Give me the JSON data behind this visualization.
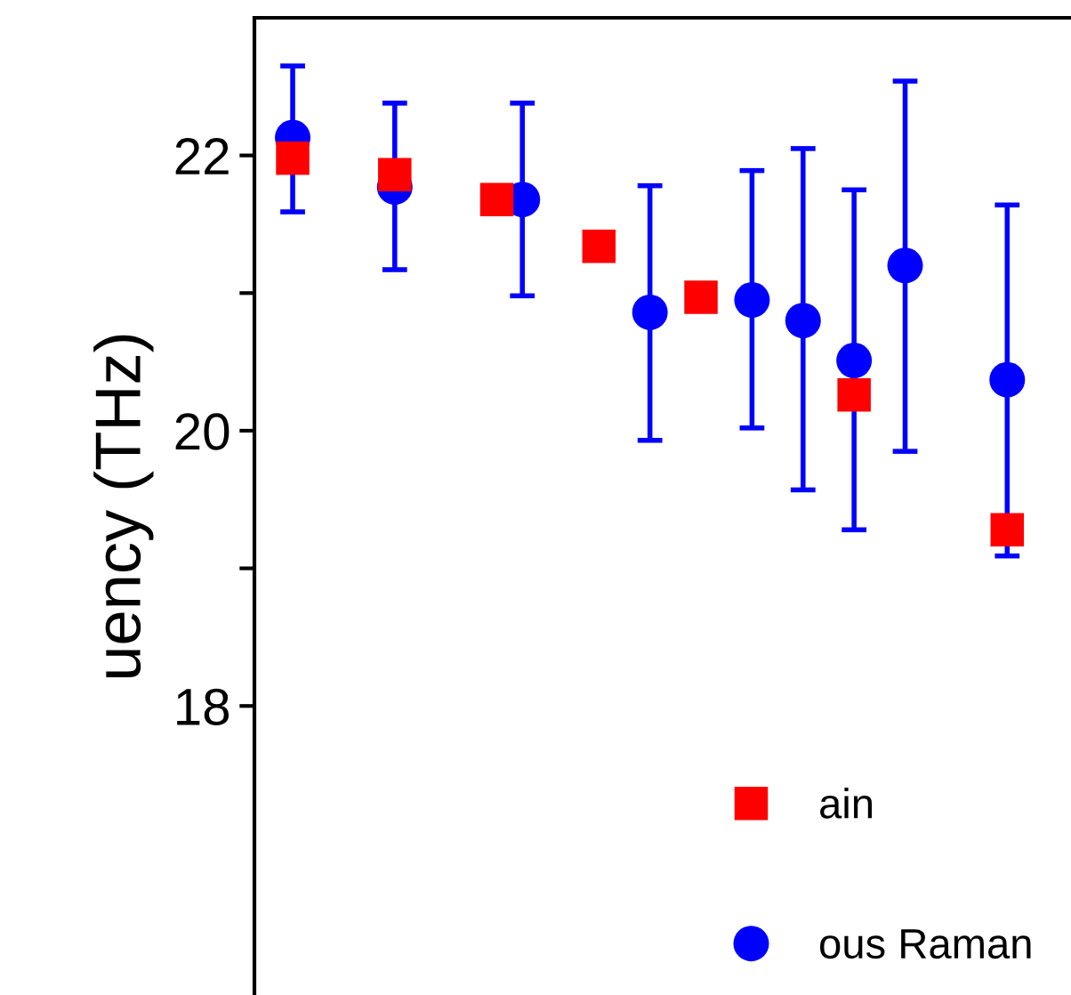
{
  "chart_data": {
    "type": "scatter",
    "ylabel": "uency (THz)",
    "categories": [
      null,
      null,
      null,
      null,
      null,
      null,
      null,
      null,
      null,
      null,
      null,
      null,
      null,
      null,
      null,
      null,
      null,
      null,
      null,
      null,
      null,
      null,
      null,
      null,
      null,
      null,
      null,
      null,
      null,
      null,
      null,
      null
    ],
    "ylim": [
      15.9,
      23
    ],
    "yticks": [
      {
        "value": 18,
        "label": "18"
      },
      {
        "value": 19,
        "label": null
      },
      {
        "value": 20,
        "label": "20"
      },
      {
        "value": 21,
        "label": null
      },
      {
        "value": 22,
        "label": "22"
      }
    ],
    "tick_labels": "y",
    "legend": "bottom right",
    "grid": false,
    "series": [
      {
        "name": "ain",
        "color": "#ff0000",
        "marker": "square",
        "values": [
          null,
          21.98,
          null,
          null,
          null,
          21.86,
          null,
          null,
          null,
          21.68,
          null,
          null,
          null,
          21.34,
          null,
          null,
          null,
          20.97,
          null,
          null,
          null,
          null,
          null,
          20.26,
          null,
          null,
          null,
          null,
          null,
          19.28,
          null,
          null
        ]
      },
      {
        "name": "ous Raman",
        "color": "#0000ff",
        "marker": "circle",
        "values": [
          null,
          22.13,
          null,
          null,
          null,
          21.77,
          null,
          null,
          null,
          null,
          21.68,
          null,
          null,
          null,
          null,
          20.86,
          null,
          null,
          null,
          20.95,
          null,
          20.8,
          null,
          20.51,
          null,
          21.2,
          null,
          null,
          null,
          20.37,
          null,
          null
        ],
        "errors": [
          null,
          [
            21.59,
            22.65
          ],
          null,
          null,
          null,
          [
            21.17,
            22.38
          ],
          null,
          null,
          null,
          null,
          [
            20.98,
            22.38
          ],
          null,
          null,
          null,
          null,
          [
            19.93,
            21.78
          ],
          null,
          null,
          null,
          [
            20.02,
            21.89
          ],
          null,
          [
            19.57,
            22.05
          ],
          null,
          [
            19.28,
            21.75
          ],
          null,
          [
            19.85,
            22.54
          ],
          null,
          null,
          null,
          [
            19.09,
            21.64
          ],
          null,
          null
        ]
      }
    ]
  }
}
